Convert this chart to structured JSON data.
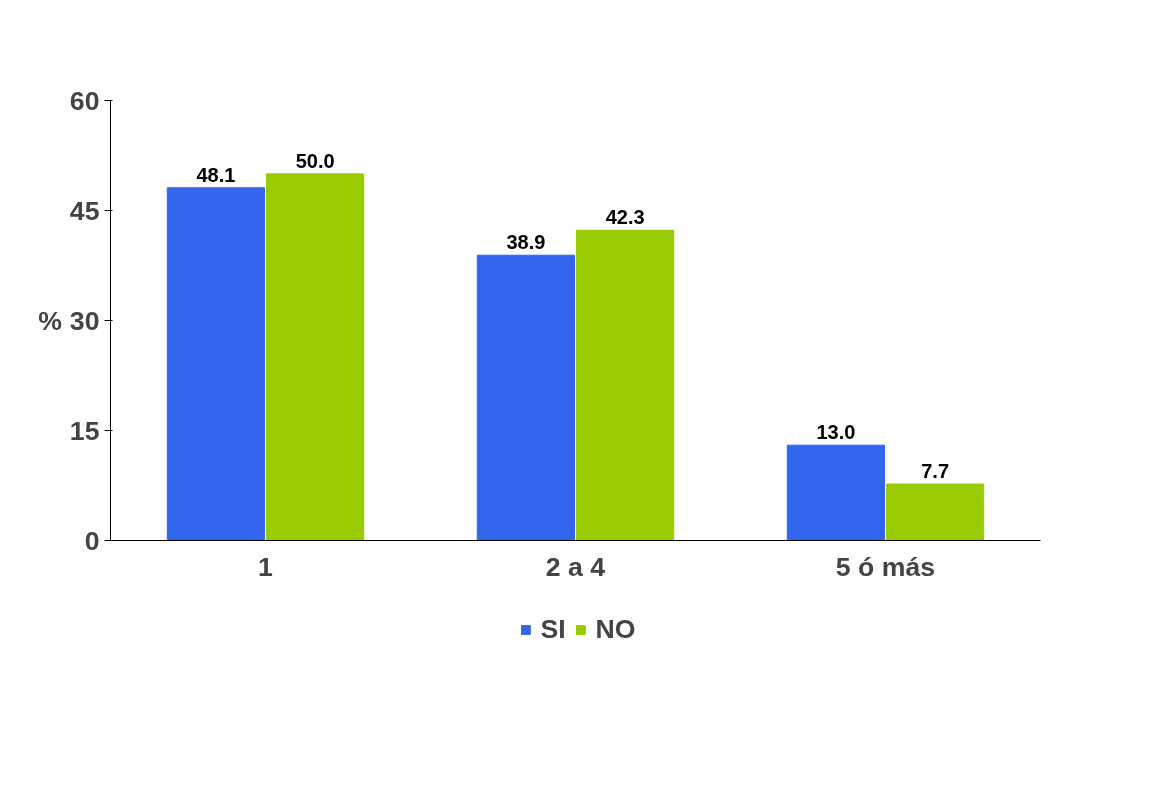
{
  "chart_data": {
    "type": "bar",
    "ylabel": "%",
    "categories": [
      "1",
      "2 a 4",
      "5 ó más"
    ],
    "series": [
      {
        "name": "SI",
        "color": "#3366ee",
        "values": [
          48.1,
          38.9,
          13.0
        ],
        "value_labels": [
          "48.1",
          "38.9",
          "13.0"
        ]
      },
      {
        "name": "NO",
        "color": "#99cc00",
        "values": [
          50.0,
          42.3,
          7.7
        ],
        "value_labels": [
          "50.0",
          "42.3",
          "7.7"
        ]
      }
    ],
    "ylim": [
      0,
      60
    ],
    "yticks": [
      0,
      15,
      30,
      45,
      60
    ],
    "grid": false,
    "legend": "bottom"
  }
}
